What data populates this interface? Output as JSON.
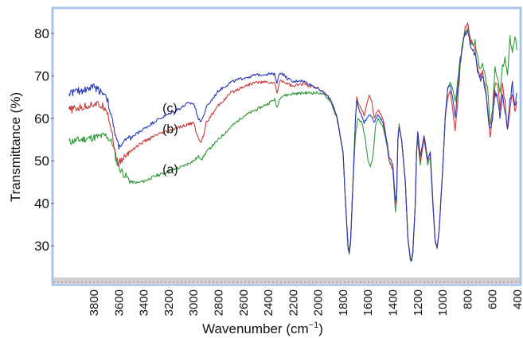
{
  "chart_data": {
    "type": "line",
    "xlabel": "Wavenumber (cm",
    "xlabel_sup": "−1",
    "xlabel_close": ")",
    "ylabel": "Transmittance (%)",
    "xlim": [
      4000,
      400
    ],
    "x_reversed": true,
    "ylim": [
      20,
      85
    ],
    "x_ticks": [
      3800,
      3600,
      3400,
      3200,
      3000,
      2800,
      2600,
      2400,
      2200,
      2000,
      1800,
      1600,
      1400,
      1200,
      1000,
      800,
      600,
      400
    ],
    "y_ticks": [
      30,
      40,
      50,
      60,
      70,
      80
    ],
    "grid": false,
    "colors": {
      "frame": "#a8c4e6",
      "bottom_band": "#d0d0d0",
      "bottom_dash": "#e05050"
    },
    "series": [
      {
        "name": "(a)",
        "color": "#2e9a3a",
        "label_at": [
          3250,
          47
        ],
        "points": [
          [
            4000,
            54.5
          ],
          [
            3900,
            55
          ],
          [
            3800,
            55.5
          ],
          [
            3700,
            56
          ],
          [
            3650,
            54
          ],
          [
            3620,
            50
          ],
          [
            3600,
            48.5
          ],
          [
            3550,
            46.5
          ],
          [
            3500,
            45
          ],
          [
            3450,
            44.8
          ],
          [
            3400,
            45.2
          ],
          [
            3300,
            46.5
          ],
          [
            3200,
            47.5
          ],
          [
            3100,
            48.5
          ],
          [
            3000,
            50
          ],
          [
            2960,
            51
          ],
          [
            2930,
            50.5
          ],
          [
            2900,
            52
          ],
          [
            2800,
            55
          ],
          [
            2700,
            58
          ],
          [
            2600,
            60.5
          ],
          [
            2500,
            62
          ],
          [
            2400,
            63.5
          ],
          [
            2350,
            64.5
          ],
          [
            2330,
            62.5
          ],
          [
            2310,
            64.5
          ],
          [
            2300,
            65.2
          ],
          [
            2200,
            65.8
          ],
          [
            2100,
            66
          ],
          [
            2000,
            66
          ],
          [
            1950,
            65.5
          ],
          [
            1900,
            64
          ],
          [
            1850,
            60
          ],
          [
            1800,
            52
          ],
          [
            1780,
            40
          ],
          [
            1760,
            29
          ],
          [
            1750,
            28.2
          ],
          [
            1740,
            30
          ],
          [
            1720,
            45
          ],
          [
            1700,
            56
          ],
          [
            1680,
            60
          ],
          [
            1650,
            59
          ],
          [
            1620,
            55
          ],
          [
            1600,
            50
          ],
          [
            1580,
            48.5
          ],
          [
            1560,
            51
          ],
          [
            1540,
            58
          ],
          [
            1520,
            60
          ],
          [
            1480,
            58
          ],
          [
            1450,
            54
          ],
          [
            1430,
            50
          ],
          [
            1400,
            48
          ],
          [
            1380,
            38
          ],
          [
            1370,
            40.5
          ],
          [
            1360,
            55
          ],
          [
            1350,
            58.5
          ],
          [
            1330,
            55
          ],
          [
            1300,
            45
          ],
          [
            1280,
            32
          ],
          [
            1260,
            26.5
          ],
          [
            1250,
            26.3
          ],
          [
            1240,
            28
          ],
          [
            1220,
            40
          ],
          [
            1210,
            52
          ],
          [
            1200,
            55
          ],
          [
            1180,
            49
          ],
          [
            1150,
            55.5
          ],
          [
            1120,
            49
          ],
          [
            1100,
            51
          ],
          [
            1080,
            40
          ],
          [
            1060,
            31
          ],
          [
            1045,
            29.5
          ],
          [
            1030,
            33
          ],
          [
            1000,
            48
          ],
          [
            980,
            60
          ],
          [
            960,
            67
          ],
          [
            940,
            68.5
          ],
          [
            920,
            67
          ],
          [
            900,
            64
          ],
          [
            880,
            69
          ],
          [
            860,
            74
          ],
          [
            840,
            78
          ],
          [
            820,
            80
          ],
          [
            800,
            81
          ],
          [
            780,
            78
          ],
          [
            760,
            77
          ],
          [
            740,
            78
          ],
          [
            720,
            74
          ],
          [
            700,
            72
          ],
          [
            680,
            73
          ],
          [
            660,
            70
          ],
          [
            640,
            67
          ],
          [
            620,
            58
          ],
          [
            600,
            62
          ],
          [
            580,
            72
          ],
          [
            560,
            70
          ],
          [
            540,
            66
          ],
          [
            520,
            72
          ],
          [
            500,
            74
          ],
          [
            480,
            70
          ],
          [
            460,
            79
          ],
          [
            440,
            75
          ],
          [
            420,
            80
          ],
          [
            405,
            76
          ]
        ]
      },
      {
        "name": "(b)",
        "color": "#cc3a3a",
        "label_at": [
          3250,
          56.5
        ],
        "points": [
          [
            4000,
            62
          ],
          [
            3900,
            62.5
          ],
          [
            3800,
            63.5
          ],
          [
            3700,
            62.5
          ],
          [
            3650,
            56
          ],
          [
            3620,
            50
          ],
          [
            3600,
            49.5
          ],
          [
            3550,
            51
          ],
          [
            3500,
            52.5
          ],
          [
            3450,
            53.5
          ],
          [
            3400,
            54.5
          ],
          [
            3300,
            56
          ],
          [
            3200,
            57
          ],
          [
            3100,
            58
          ],
          [
            3000,
            59
          ],
          [
            2960,
            55
          ],
          [
            2940,
            54.5
          ],
          [
            2920,
            56
          ],
          [
            2900,
            59
          ],
          [
            2800,
            63
          ],
          [
            2700,
            66
          ],
          [
            2600,
            67.5
          ],
          [
            2500,
            68.5
          ],
          [
            2400,
            68.5
          ],
          [
            2350,
            68.3
          ],
          [
            2330,
            66
          ],
          [
            2310,
            68.5
          ],
          [
            2300,
            69
          ],
          [
            2200,
            67.5
          ],
          [
            2150,
            68
          ],
          [
            2100,
            68
          ],
          [
            2000,
            67
          ],
          [
            1950,
            66
          ],
          [
            1900,
            64.5
          ],
          [
            1850,
            60.5
          ],
          [
            1800,
            52
          ],
          [
            1780,
            40
          ],
          [
            1760,
            30
          ],
          [
            1750,
            28.5
          ],
          [
            1740,
            31
          ],
          [
            1720,
            45
          ],
          [
            1700,
            60
          ],
          [
            1690,
            65
          ],
          [
            1670,
            63
          ],
          [
            1650,
            62
          ],
          [
            1630,
            60.5
          ],
          [
            1610,
            63.5
          ],
          [
            1590,
            65.5
          ],
          [
            1570,
            64
          ],
          [
            1550,
            60
          ],
          [
            1520,
            62
          ],
          [
            1480,
            60
          ],
          [
            1450,
            55
          ],
          [
            1430,
            50
          ],
          [
            1400,
            48
          ],
          [
            1380,
            40
          ],
          [
            1370,
            42
          ],
          [
            1360,
            55
          ],
          [
            1350,
            58
          ],
          [
            1330,
            55
          ],
          [
            1300,
            45
          ],
          [
            1280,
            32
          ],
          [
            1260,
            27
          ],
          [
            1250,
            26.5
          ],
          [
            1240,
            28.5
          ],
          [
            1220,
            40
          ],
          [
            1210,
            52
          ],
          [
            1200,
            56
          ],
          [
            1180,
            50
          ],
          [
            1150,
            55
          ],
          [
            1120,
            50
          ],
          [
            1100,
            52
          ],
          [
            1080,
            41
          ],
          [
            1060,
            31
          ],
          [
            1045,
            29.5
          ],
          [
            1030,
            33
          ],
          [
            1000,
            48
          ],
          [
            980,
            60
          ],
          [
            960,
            65
          ],
          [
            940,
            66.5
          ],
          [
            920,
            62
          ],
          [
            900,
            57
          ],
          [
            880,
            64
          ],
          [
            860,
            72
          ],
          [
            840,
            77
          ],
          [
            820,
            81
          ],
          [
            800,
            82
          ],
          [
            780,
            79
          ],
          [
            760,
            77
          ],
          [
            740,
            76
          ],
          [
            720,
            72
          ],
          [
            700,
            70
          ],
          [
            680,
            71
          ],
          [
            660,
            68
          ],
          [
            640,
            63
          ],
          [
            620,
            56
          ],
          [
            600,
            60
          ],
          [
            580,
            68
          ],
          [
            560,
            68
          ],
          [
            540,
            62
          ],
          [
            520,
            68
          ],
          [
            500,
            64
          ],
          [
            480,
            57
          ],
          [
            460,
            62
          ],
          [
            440,
            66
          ],
          [
            420,
            62
          ],
          [
            405,
            64
          ]
        ]
      },
      {
        "name": "(c)",
        "color": "#2a3ab8",
        "label_at": [
          3250,
          61.5
        ],
        "points": [
          [
            4000,
            66
          ],
          [
            3900,
            66.5
          ],
          [
            3800,
            67.5
          ],
          [
            3700,
            65.5
          ],
          [
            3650,
            59
          ],
          [
            3620,
            55
          ],
          [
            3600,
            53.5
          ],
          [
            3550,
            54.5
          ],
          [
            3500,
            55.5
          ],
          [
            3450,
            56.5
          ],
          [
            3400,
            57.5
          ],
          [
            3300,
            59.5
          ],
          [
            3200,
            61
          ],
          [
            3100,
            62.5
          ],
          [
            3050,
            63.5
          ],
          [
            3000,
            63.5
          ],
          [
            2960,
            60
          ],
          [
            2940,
            59.3
          ],
          [
            2920,
            60.5
          ],
          [
            2900,
            62.5
          ],
          [
            2800,
            66.5
          ],
          [
            2700,
            68.5
          ],
          [
            2600,
            69.5
          ],
          [
            2500,
            70.2
          ],
          [
            2400,
            70.5
          ],
          [
            2350,
            70.3
          ],
          [
            2330,
            68.5
          ],
          [
            2310,
            70.5
          ],
          [
            2300,
            70.8
          ],
          [
            2250,
            69.5
          ],
          [
            2200,
            68.5
          ],
          [
            2150,
            69
          ],
          [
            2100,
            68.5
          ],
          [
            2000,
            67
          ],
          [
            1950,
            66
          ],
          [
            1900,
            64.5
          ],
          [
            1850,
            60.5
          ],
          [
            1800,
            52
          ],
          [
            1780,
            40
          ],
          [
            1760,
            30
          ],
          [
            1750,
            28.5
          ],
          [
            1740,
            31
          ],
          [
            1720,
            45
          ],
          [
            1700,
            60
          ],
          [
            1690,
            64
          ],
          [
            1670,
            62
          ],
          [
            1650,
            60.5
          ],
          [
            1630,
            59
          ],
          [
            1610,
            60
          ],
          [
            1590,
            61
          ],
          [
            1570,
            60.5
          ],
          [
            1550,
            59
          ],
          [
            1520,
            61
          ],
          [
            1480,
            59
          ],
          [
            1450,
            55
          ],
          [
            1430,
            51
          ],
          [
            1400,
            49
          ],
          [
            1380,
            40.5
          ],
          [
            1370,
            42
          ],
          [
            1360,
            55
          ],
          [
            1350,
            58
          ],
          [
            1330,
            55
          ],
          [
            1300,
            45
          ],
          [
            1280,
            32
          ],
          [
            1260,
            27
          ],
          [
            1250,
            26.5
          ],
          [
            1240,
            28.5
          ],
          [
            1220,
            40
          ],
          [
            1210,
            52
          ],
          [
            1200,
            57
          ],
          [
            1180,
            51
          ],
          [
            1150,
            56
          ],
          [
            1120,
            50.5
          ],
          [
            1100,
            52
          ],
          [
            1080,
            41
          ],
          [
            1060,
            31
          ],
          [
            1045,
            29.5
          ],
          [
            1030,
            33
          ],
          [
            1000,
            48
          ],
          [
            980,
            60
          ],
          [
            960,
            67
          ],
          [
            940,
            68
          ],
          [
            920,
            65
          ],
          [
            900,
            60
          ],
          [
            880,
            67
          ],
          [
            860,
            73
          ],
          [
            840,
            77
          ],
          [
            820,
            80
          ],
          [
            800,
            81
          ],
          [
            780,
            78
          ],
          [
            760,
            76
          ],
          [
            740,
            75
          ],
          [
            720,
            71
          ],
          [
            700,
            69
          ],
          [
            680,
            70
          ],
          [
            660,
            67
          ],
          [
            640,
            62
          ],
          [
            620,
            57
          ],
          [
            600,
            60
          ],
          [
            580,
            66
          ],
          [
            560,
            65
          ],
          [
            540,
            60
          ],
          [
            520,
            66
          ],
          [
            500,
            62
          ],
          [
            480,
            58
          ],
          [
            460,
            64
          ],
          [
            440,
            68
          ],
          [
            420,
            63
          ],
          [
            405,
            66
          ]
        ]
      }
    ]
  }
}
